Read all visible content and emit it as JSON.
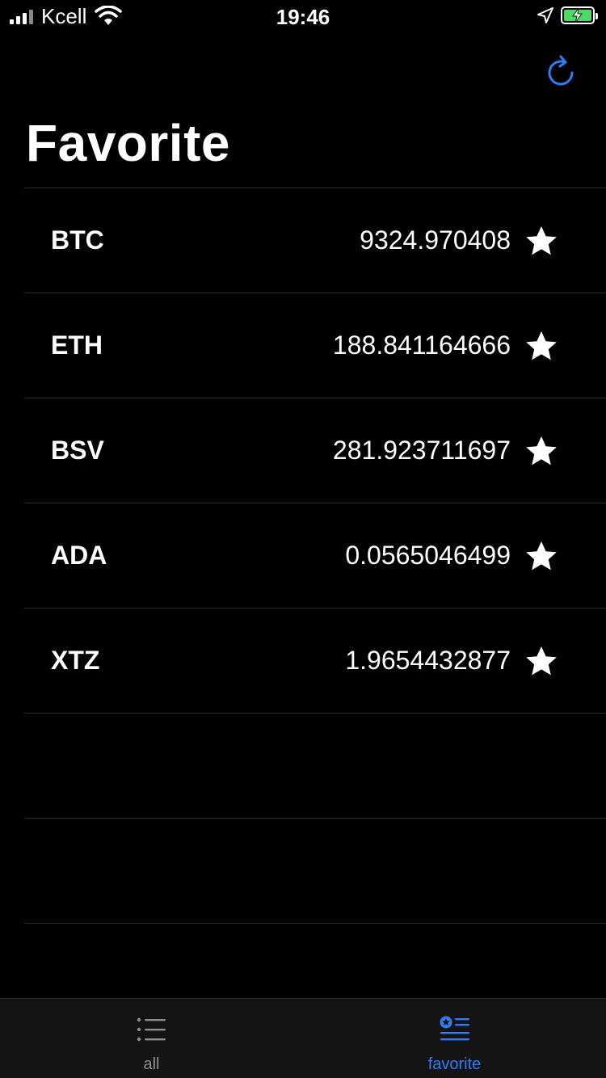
{
  "status_bar": {
    "carrier": "Kcell",
    "time": "19:46"
  },
  "header": {
    "title": "Favorite",
    "refresh_icon": "refresh-icon"
  },
  "favorites": [
    {
      "symbol": "BTC",
      "price": "9324.970408",
      "starred": true
    },
    {
      "symbol": "ETH",
      "price": "188.841164666",
      "starred": true
    },
    {
      "symbol": "BSV",
      "price": "281.923711697",
      "starred": true
    },
    {
      "symbol": "ADA",
      "price": "0.0565046499",
      "starred": true
    },
    {
      "symbol": "XTZ",
      "price": "1.9654432877",
      "starred": true
    }
  ],
  "tab_bar": {
    "tabs": [
      {
        "label": "all",
        "icon": "list-icon",
        "selected": false
      },
      {
        "label": "favorite",
        "icon": "favorite-list-icon",
        "selected": true
      }
    ]
  },
  "colors": {
    "background": "#000000",
    "accent": "#2f7ef7",
    "inactive": "#8e8e93",
    "battery": "#4cd964"
  }
}
